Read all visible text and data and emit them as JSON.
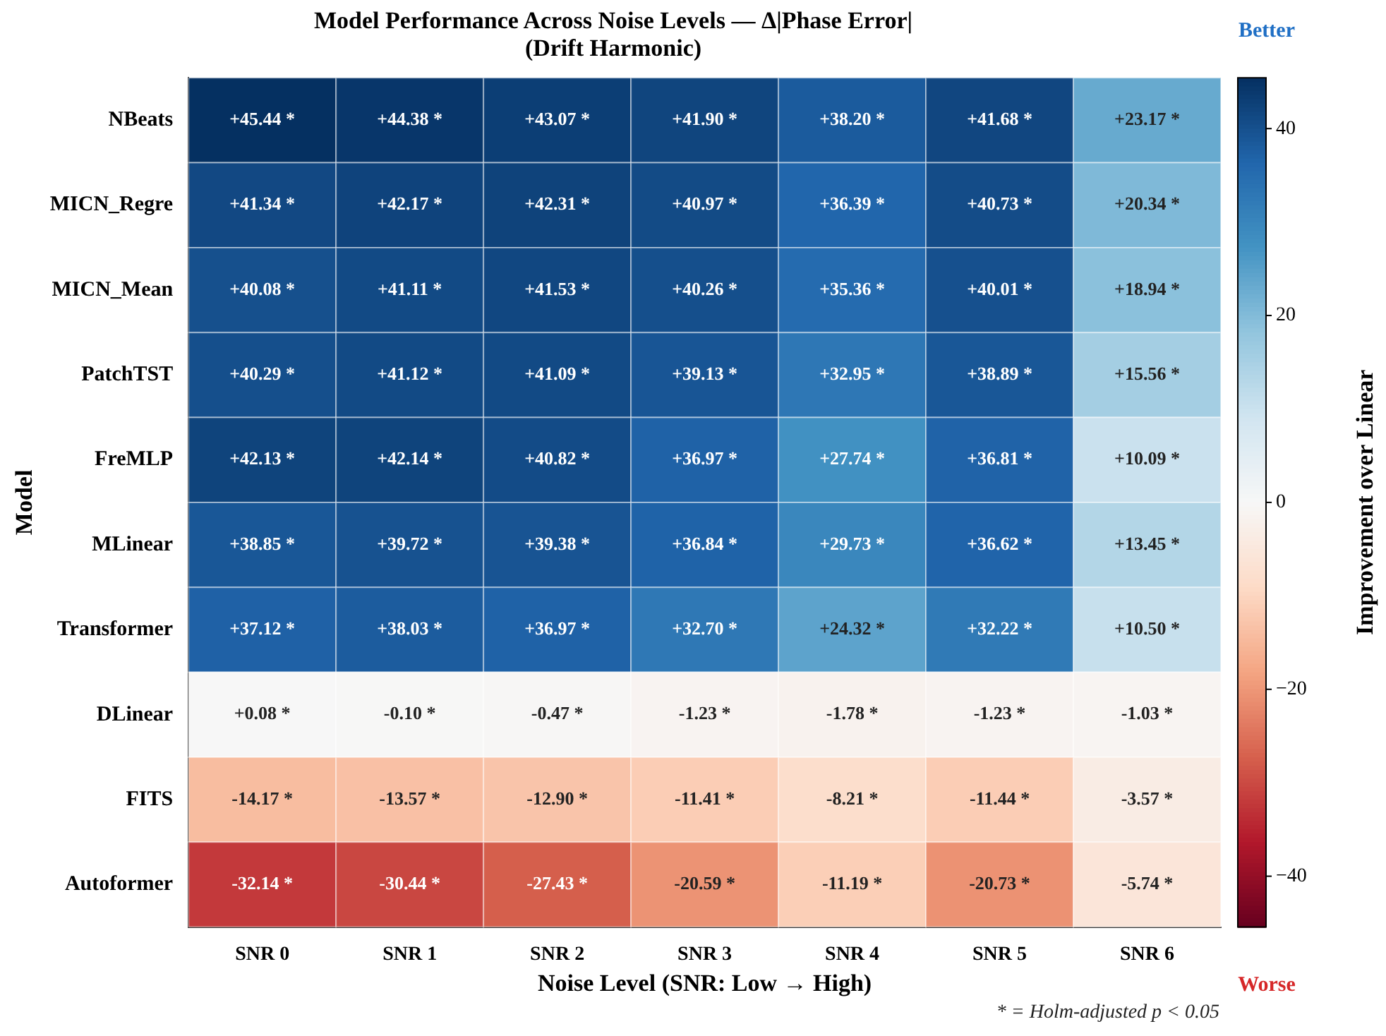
{
  "chart_data": {
    "type": "heatmap",
    "title": "Model Performance Across Noise Levels — Δ|Phase Error|\n(Drift Harmonic)",
    "xlabel": "Noise Level (SNR: Low → High)",
    "ylabel": "Model",
    "clabel": "Improvement over Linear",
    "categories": [
      "SNR 0",
      "SNR 1",
      "SNR 2",
      "SNR 3",
      "SNR 4",
      "SNR 5",
      "SNR 6"
    ],
    "y_categories": [
      "NBeats",
      "MICN_Regre",
      "MICN_Mean",
      "PatchTST",
      "FreMLP",
      "MLinear",
      "Transformer",
      "DLinear",
      "FITS",
      "Autoformer"
    ],
    "cells": [
      [
        45.44,
        44.38,
        43.07,
        41.9,
        38.2,
        41.68,
        23.17
      ],
      [
        41.34,
        42.17,
        42.31,
        40.97,
        36.39,
        40.73,
        20.34
      ],
      [
        40.08,
        41.11,
        41.53,
        40.26,
        35.36,
        40.01,
        18.94
      ],
      [
        40.29,
        41.12,
        41.09,
        39.13,
        32.95,
        38.89,
        15.56
      ],
      [
        42.13,
        42.14,
        40.82,
        36.97,
        27.74,
        36.81,
        10.09
      ],
      [
        38.85,
        39.72,
        39.38,
        36.84,
        29.73,
        36.62,
        13.45
      ],
      [
        37.12,
        38.03,
        36.97,
        32.7,
        24.32,
        32.22,
        10.5
      ],
      [
        0.08,
        -0.1,
        -0.47,
        -1.23,
        -1.78,
        -1.23,
        -1.03
      ],
      [
        -14.17,
        -13.57,
        -12.9,
        -11.41,
        -8.21,
        -11.44,
        -3.57
      ],
      [
        -32.14,
        -30.44,
        -27.43,
        -20.59,
        -11.19,
        -20.73,
        -5.74
      ]
    ],
    "cell_labels": [
      [
        "+45.44 *",
        "+44.38 *",
        "+43.07 *",
        "+41.90 *",
        "+38.20 *",
        "+41.68 *",
        "+23.17 *"
      ],
      [
        "+41.34 *",
        "+42.17 *",
        "+42.31 *",
        "+40.97 *",
        "+36.39 *",
        "+40.73 *",
        "+20.34 *"
      ],
      [
        "+40.08 *",
        "+41.11 *",
        "+41.53 *",
        "+40.26 *",
        "+35.36 *",
        "+40.01 *",
        "+18.94 *"
      ],
      [
        "+40.29 *",
        "+41.12 *",
        "+41.09 *",
        "+39.13 *",
        "+32.95 *",
        "+38.89 *",
        "+15.56 *"
      ],
      [
        "+42.13 *",
        "+42.14 *",
        "+40.82 *",
        "+36.97 *",
        "+27.74 *",
        "+36.81 *",
        "+10.09 *"
      ],
      [
        "+38.85 *",
        "+39.72 *",
        "+39.38 *",
        "+36.84 *",
        "+29.73 *",
        "+36.62 *",
        "+13.45 *"
      ],
      [
        "+37.12 *",
        "+38.03 *",
        "+36.97 *",
        "+32.70 *",
        "+24.32 *",
        "+32.22 *",
        "+10.50 *"
      ],
      [
        "+0.08 *",
        "-0.10 *",
        "-0.47 *",
        "-1.23 *",
        "-1.78 *",
        "-1.23 *",
        "-1.03 *"
      ],
      [
        "-14.17 *",
        "-13.57 *",
        "-12.90 *",
        "-11.41 *",
        "-8.21 *",
        "-11.44 *",
        "-3.57 *"
      ],
      [
        "-32.14 *",
        "-30.44 *",
        "-27.43 *",
        "-20.59 *",
        "-11.19 *",
        "-20.73 *",
        "-5.74 *"
      ]
    ],
    "clim": [
      -45.44,
      45.44
    ],
    "cticks": [
      -40,
      -20,
      0,
      20,
      40
    ],
    "annotations": [
      "Better",
      "Worse",
      "* = Holm-adjusted p < 0.05"
    ]
  }
}
